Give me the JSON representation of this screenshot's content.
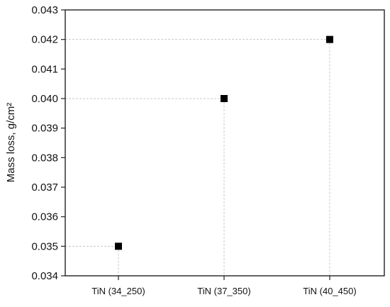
{
  "chart_data": {
    "type": "scatter",
    "title": "",
    "xlabel": "",
    "ylabel": "Mass loss, g/cm²",
    "categories": [
      "TiN (34_250)",
      "TiN (37_350)",
      "TiN (40_450)"
    ],
    "series": [
      {
        "values": [
          0.035,
          0.04,
          0.042
        ],
        "color": "#000000",
        "marker": "square"
      }
    ],
    "ylim": [
      0.034,
      0.043
    ],
    "yticks": [
      "0.034",
      "0.035",
      "0.036",
      "0.037",
      "0.038",
      "0.039",
      "0.040",
      "0.041",
      "0.042",
      "0.043"
    ],
    "grid": false,
    "guide_lines": true
  }
}
